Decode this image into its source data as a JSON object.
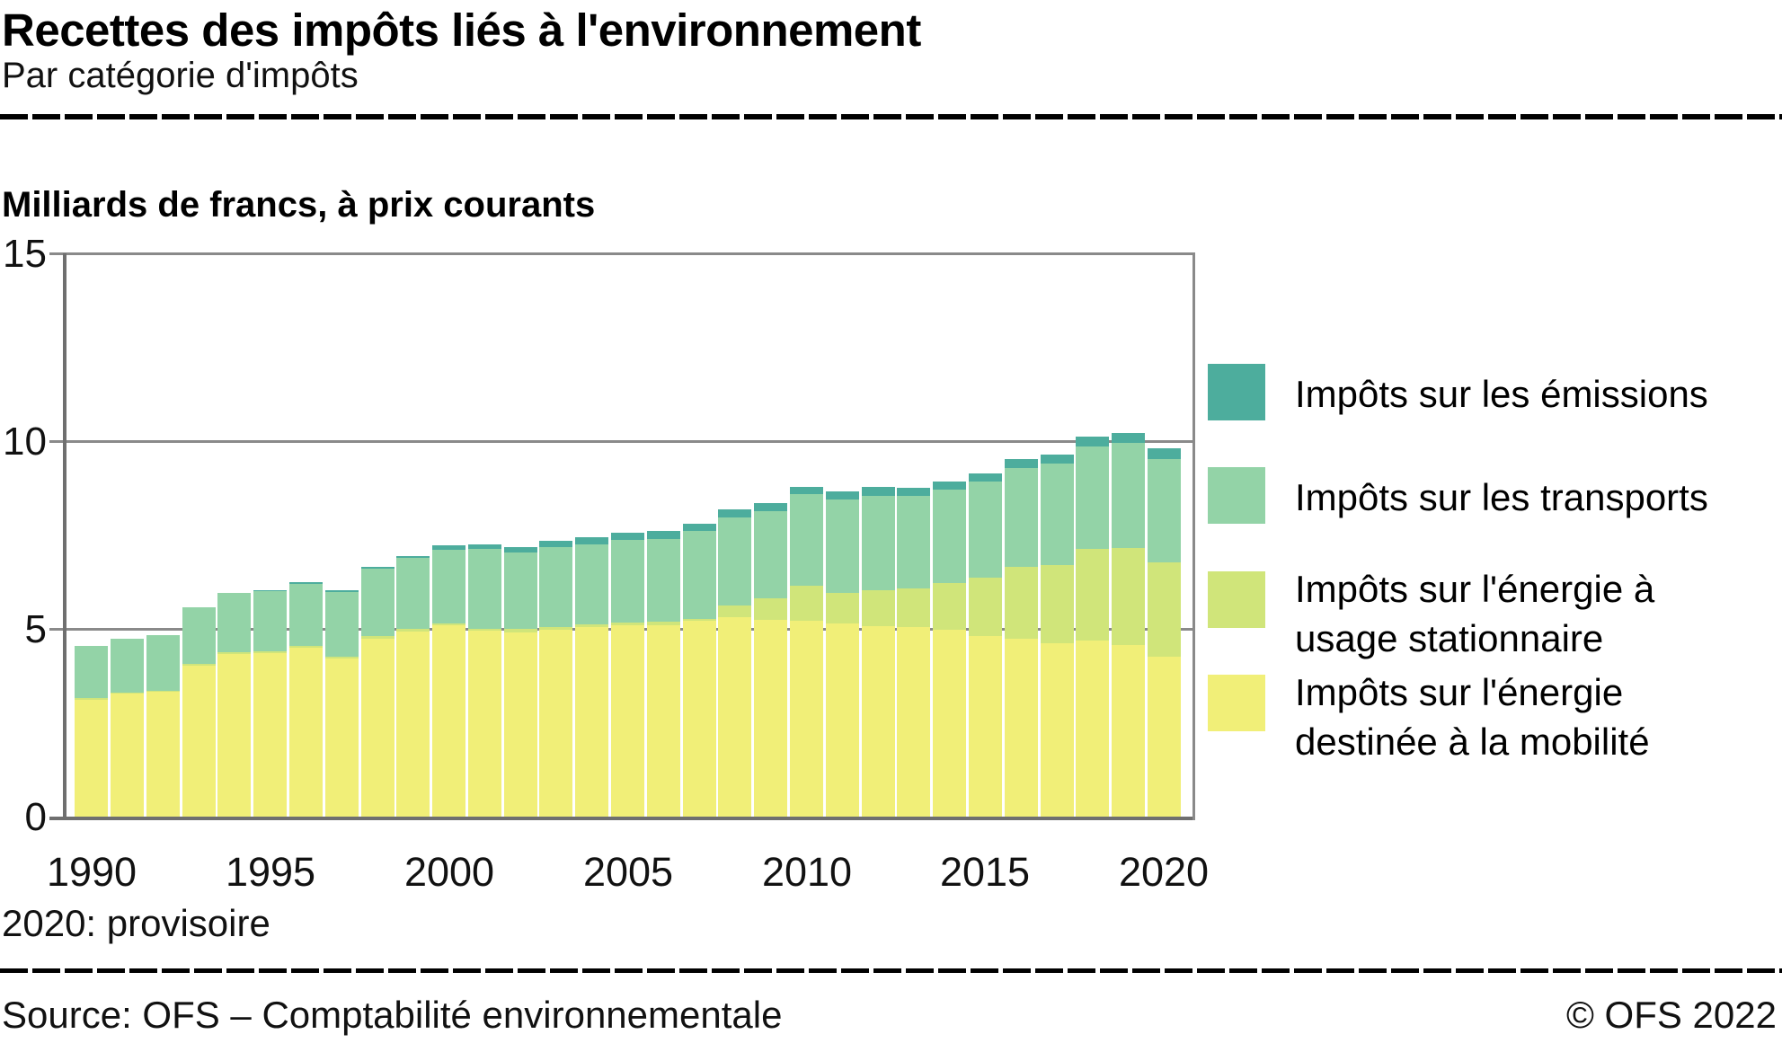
{
  "header": {
    "title": "Recettes des impôts liés à l'environnement",
    "subtitle": "Par catégorie d'impôts"
  },
  "chart": {
    "unit_label": "Milliards de francs, à prix courants",
    "note": "2020: provisoire"
  },
  "footer": {
    "source": "Source: OFS – Comptabilité environnementale",
    "copyright": "© OFS 2022"
  },
  "colors": {
    "emissions": "#4DAD9D",
    "transports": "#93D3A7",
    "stationary": "#D0E57A",
    "mobility": "#F1EF78",
    "gridline": "#8a8a8a",
    "axis": "#6f6f6f"
  },
  "legend": [
    {
      "color": "#4DAD9D",
      "lines": [
        "Impôts sur les émissions"
      ]
    },
    {
      "color": "#93D3A7",
      "lines": [
        "Impôts sur les transports"
      ]
    },
    {
      "color": "#D0E57A",
      "lines": [
        "Impôts sur l'énergie à",
        "usage stationnaire"
      ]
    },
    {
      "color": "#F1EF78",
      "lines": [
        "Impôts sur l'énergie",
        "destinée à la mobilité"
      ]
    }
  ],
  "chart_data": {
    "type": "bar",
    "stacked": true,
    "title": "Recettes des impôts liés à l'environnement",
    "ylabel": "Milliards de francs, à prix courants",
    "ylim": [
      0,
      15
    ],
    "yticks": [
      0,
      5,
      10,
      15
    ],
    "xticks": [
      1990,
      1995,
      2000,
      2005,
      2010,
      2015,
      2020
    ],
    "grid": true,
    "legend_position": "right",
    "categories": [
      1990,
      1991,
      1992,
      1993,
      1994,
      1995,
      1996,
      1997,
      1998,
      1999,
      2000,
      2001,
      2002,
      2003,
      2004,
      2005,
      2006,
      2007,
      2008,
      2009,
      2010,
      2011,
      2012,
      2013,
      2014,
      2015,
      2016,
      2017,
      2018,
      2019,
      2020
    ],
    "series": [
      {
        "name": "Impôts sur l'énergie destinée à la mobilité",
        "color": "#F1EF78",
        "values": [
          3.12,
          3.27,
          3.32,
          4.03,
          4.33,
          4.36,
          4.49,
          4.21,
          4.74,
          4.93,
          5.09,
          4.95,
          4.9,
          4.98,
          5.05,
          5.1,
          5.1,
          5.21,
          5.3,
          5.25,
          5.21,
          5.14,
          5.06,
          5.05,
          4.98,
          4.82,
          4.74,
          4.61,
          4.7,
          4.58,
          4.26
        ]
      },
      {
        "name": "Impôts sur l'énergie à usage stationnaire",
        "color": "#D0E57A",
        "values": [
          0.04,
          0.04,
          0.04,
          0.04,
          0.04,
          0.04,
          0.05,
          0.05,
          0.06,
          0.06,
          0.06,
          0.06,
          0.1,
          0.07,
          0.06,
          0.07,
          0.08,
          0.06,
          0.32,
          0.57,
          0.93,
          0.82,
          0.96,
          1.03,
          1.24,
          1.54,
          1.92,
          2.1,
          2.42,
          2.57,
          2.5
        ]
      },
      {
        "name": "Impôts sur les transports",
        "color": "#93D3A7",
        "values": [
          1.39,
          1.43,
          1.47,
          1.51,
          1.58,
          1.6,
          1.65,
          1.73,
          1.8,
          1.89,
          1.96,
          2.11,
          2.03,
          2.13,
          2.13,
          2.19,
          2.22,
          2.33,
          2.34,
          2.32,
          2.44,
          2.48,
          2.52,
          2.45,
          2.48,
          2.56,
          2.63,
          2.68,
          2.73,
          2.8,
          2.77
        ]
      },
      {
        "name": "Impôts sur les émissions",
        "color": "#4DAD9D",
        "values": [
          0.0,
          0.0,
          0.0,
          0.0,
          0.0,
          0.04,
          0.05,
          0.03,
          0.06,
          0.06,
          0.11,
          0.12,
          0.15,
          0.16,
          0.2,
          0.19,
          0.2,
          0.2,
          0.21,
          0.21,
          0.2,
          0.21,
          0.24,
          0.23,
          0.22,
          0.21,
          0.22,
          0.26,
          0.27,
          0.26,
          0.29
        ]
      }
    ]
  }
}
